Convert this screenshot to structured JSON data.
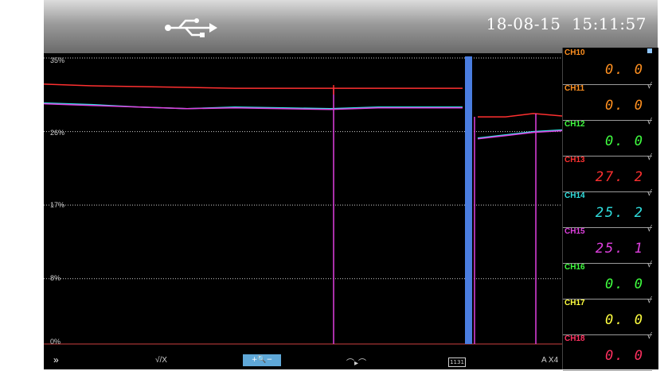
{
  "header": {
    "usb_icon": "usb-icon",
    "date": "18-08-15",
    "time": "15:11:57"
  },
  "chart_data": {
    "type": "line",
    "yticks": [
      "35%",
      "26%",
      "17%",
      "8%",
      "0%"
    ],
    "ylim": [
      0,
      35
    ],
    "grid": true,
    "series": [
      {
        "color": "#ff3030",
        "values": [
          31.8,
          31.6,
          31.5,
          31.4,
          31.3,
          31.3,
          31.3,
          31.3,
          31.3,
          31.3,
          0,
          27.8,
          27.8,
          28.2,
          27.9
        ]
      },
      {
        "color": "#30e0e0",
        "values": [
          29.5,
          29.3,
          29.0,
          28.8,
          29.0,
          28.9,
          28.8,
          29.0,
          29.0,
          29.0,
          0,
          25.2,
          25.6,
          26.0,
          26.2
        ]
      },
      {
        "color": "#e040e0",
        "values": [
          29.4,
          29.2,
          29.0,
          28.8,
          28.9,
          28.8,
          28.7,
          28.9,
          28.9,
          28.9,
          0,
          25.1,
          25.5,
          25.9,
          26.1
        ]
      }
    ]
  },
  "channels": [
    {
      "name": "CH10",
      "value": "0. 0",
      "color": "#ff9020",
      "value_color": "#ff9020",
      "mark": ""
    },
    {
      "name": "CH11",
      "value": "0. 0",
      "color": "#ff9020",
      "value_color": "#ff9020",
      "mark": "√"
    },
    {
      "name": "CH12",
      "value": "0. 0",
      "color": "#40ff40",
      "value_color": "#40ff40",
      "mark": "√"
    },
    {
      "name": "CH13",
      "value": "27. 2",
      "color": "#ff3030",
      "value_color": "#ff3030",
      "mark": "√"
    },
    {
      "name": "CH14",
      "value": "25. 2",
      "color": "#30e0e0",
      "value_color": "#30e0e0",
      "mark": "√"
    },
    {
      "name": "CH15",
      "value": "25. 1",
      "color": "#e040e0",
      "value_color": "#e040e0",
      "mark": "√"
    },
    {
      "name": "CH16",
      "value": "0. 0",
      "color": "#40ff40",
      "value_color": "#40ff40",
      "mark": "√"
    },
    {
      "name": "CH17",
      "value": "0. 0",
      "color": "#ffff40",
      "value_color": "#ffff40",
      "mark": "√"
    },
    {
      "name": "CH18",
      "value": "0. 0",
      "color": "#ff3060",
      "value_color": "#ff3060",
      "mark": "√"
    }
  ],
  "toolbar": {
    "forward_icon": "fast-forward-icon",
    "check_toggle": "√/X",
    "zoom_label": "+🔍−",
    "trend_icon": "trend-compare-icon",
    "clock_label": "1131",
    "scale_label": "A X4"
  }
}
